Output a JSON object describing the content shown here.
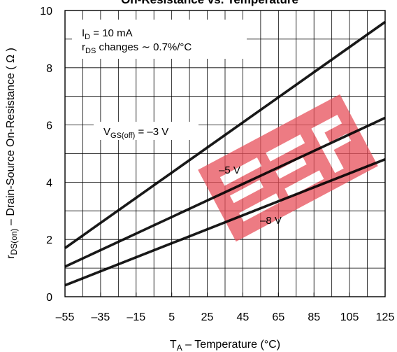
{
  "chart_data": {
    "type": "line",
    "title": "On-Resistance vs. Temperature",
    "xlabel": {
      "main": "T",
      "sub": "A",
      "rest": " – Temperature (°C)"
    },
    "ylabel": {
      "main": "r",
      "sub": "DS(on)",
      "rest": " – Drain-Source On-Resistance ( Ω )"
    },
    "xlim": [
      -55,
      125
    ],
    "ylim": [
      0,
      10
    ],
    "x_ticks": [
      -55,
      -35,
      -15,
      5,
      25,
      45,
      65,
      85,
      105,
      125
    ],
    "x_tick_labels": [
      "–55",
      "–35",
      "–15",
      "5",
      "25",
      "45",
      "65",
      "85",
      "105",
      "125"
    ],
    "y_ticks": [
      0,
      2,
      4,
      6,
      8,
      10
    ],
    "y_tick_labels": [
      "0",
      "2",
      "4",
      "6",
      "8",
      "10"
    ],
    "grid": true,
    "series": [
      {
        "name": "VGS(off) = –3 V",
        "x": [
          -55,
          125
        ],
        "y": [
          1.7,
          9.6
        ]
      },
      {
        "name": "–5 V",
        "x": [
          -55,
          125
        ],
        "y": [
          1.05,
          6.25
        ]
      },
      {
        "name": "–8 V",
        "x": [
          -55,
          125
        ],
        "y": [
          0.4,
          4.8
        ]
      }
    ],
    "annotations": {
      "conditions": {
        "line1": {
          "main": "I",
          "sub": "D",
          "rest": " = 10 mA"
        },
        "line2": {
          "main": "r",
          "sub": "DS",
          "rest": " changes ∼ 0.7%/°C"
        }
      },
      "series_labels": {
        "s0": {
          "main": "V",
          "sub": "GS(off)",
          "rest": " = –3 V"
        },
        "s1": "–5 V",
        "s2": "–8 V"
      }
    },
    "colors": {
      "line": "#000000",
      "grid": "#000000",
      "watermark": "#e8505a"
    }
  }
}
